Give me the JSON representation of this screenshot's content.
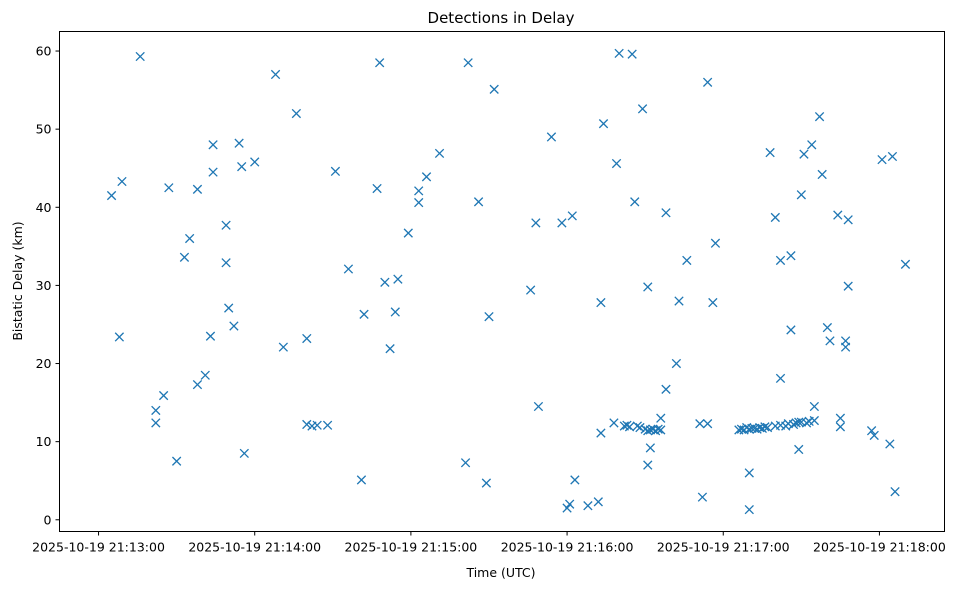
{
  "chart_data": {
    "type": "scatter",
    "title": "Detections in Delay",
    "xlabel": "Time (UTC)",
    "ylabel": "Bistatic Delay (km)",
    "x_unit": "seconds since 2025-10-19 21:13:00",
    "xlim": [
      -15,
      325
    ],
    "ylim": [
      -1.5,
      62.5
    ],
    "x_ticks": [
      0,
      60,
      120,
      180,
      240,
      300
    ],
    "x_tick_labels": [
      "2025-10-19 21:13:00",
      "2025-10-19 21:14:00",
      "2025-10-19 21:15:00",
      "2025-10-19 21:16:00",
      "2025-10-19 21:17:00",
      "2025-10-19 21:18:00"
    ],
    "y_ticks": [
      0,
      10,
      20,
      30,
      40,
      50,
      60
    ],
    "y_tick_labels": [
      "0",
      "10",
      "20",
      "30",
      "40",
      "50",
      "60"
    ],
    "marker": "x",
    "color": "#1f77b4",
    "series": [
      {
        "name": "Detections",
        "points": [
          [
            5,
            41.5
          ],
          [
            8,
            23.4
          ],
          [
            9,
            43.3
          ],
          [
            16,
            59.3
          ],
          [
            22,
            14
          ],
          [
            22,
            12.4
          ],
          [
            25,
            15.9
          ],
          [
            27,
            42.5
          ],
          [
            30,
            7.5
          ],
          [
            33,
            33.6
          ],
          [
            35,
            36
          ],
          [
            38,
            17.3
          ],
          [
            38,
            42.3
          ],
          [
            41,
            18.5
          ],
          [
            43,
            23.5
          ],
          [
            44,
            48
          ],
          [
            44,
            44.5
          ],
          [
            49,
            37.7
          ],
          [
            49,
            32.9
          ],
          [
            50,
            27.1
          ],
          [
            52,
            24.8
          ],
          [
            54,
            48.2
          ],
          [
            55,
            45.2
          ],
          [
            56,
            8.5
          ],
          [
            60,
            45.8
          ],
          [
            68,
            57
          ],
          [
            71,
            22.1
          ],
          [
            76,
            52
          ],
          [
            80,
            23.2
          ],
          [
            80,
            12.2
          ],
          [
            82,
            12
          ],
          [
            84,
            12.1
          ],
          [
            88,
            12.1
          ],
          [
            91,
            44.6
          ],
          [
            96,
            32.1
          ],
          [
            101,
            5.1
          ],
          [
            102,
            26.3
          ],
          [
            107,
            42.4
          ],
          [
            108,
            58.5
          ],
          [
            110,
            30.4
          ],
          [
            112,
            21.9
          ],
          [
            114,
            26.6
          ],
          [
            115,
            30.8
          ],
          [
            119,
            36.7
          ],
          [
            123,
            42.1
          ],
          [
            123,
            40.6
          ],
          [
            126,
            43.9
          ],
          [
            131,
            46.9
          ],
          [
            141,
            7.3
          ],
          [
            142,
            58.5
          ],
          [
            146,
            40.7
          ],
          [
            149,
            4.7
          ],
          [
            150,
            26
          ],
          [
            152,
            55.1
          ],
          [
            166,
            29.4
          ],
          [
            168,
            38
          ],
          [
            169,
            14.5
          ],
          [
            174,
            49
          ],
          [
            178,
            38
          ],
          [
            180,
            1.5
          ],
          [
            181,
            2
          ],
          [
            182,
            38.9
          ],
          [
            183,
            5.1
          ],
          [
            188,
            1.8
          ],
          [
            192,
            2.3
          ],
          [
            193,
            11.1
          ],
          [
            193,
            27.8
          ],
          [
            194,
            50.7
          ],
          [
            198,
            12.4
          ],
          [
            199,
            45.6
          ],
          [
            200,
            59.7
          ],
          [
            202,
            12
          ],
          [
            203,
            12.1
          ],
          [
            204,
            11.9
          ],
          [
            205,
            59.6
          ],
          [
            206,
            40.7
          ],
          [
            207,
            12
          ],
          [
            208,
            11.8
          ],
          [
            209,
            52.6
          ],
          [
            210,
            11.6
          ],
          [
            211,
            11.4
          ],
          [
            211,
            7
          ],
          [
            211,
            29.8
          ],
          [
            212,
            9.2
          ],
          [
            212,
            11.5
          ],
          [
            213,
            11.6
          ],
          [
            214,
            11.4
          ],
          [
            215,
            11.6
          ],
          [
            216,
            13
          ],
          [
            216,
            11.5
          ],
          [
            218,
            39.3
          ],
          [
            218,
            16.7
          ],
          [
            222,
            20
          ],
          [
            223,
            28
          ],
          [
            226,
            33.2
          ],
          [
            231,
            12.3
          ],
          [
            232,
            2.9
          ],
          [
            234,
            56
          ],
          [
            234,
            12.3
          ],
          [
            236,
            27.8
          ],
          [
            237,
            35.4
          ],
          [
            246,
            11.5
          ],
          [
            247,
            11.6
          ],
          [
            248,
            11.5
          ],
          [
            249,
            11.8
          ],
          [
            250,
            11.6
          ],
          [
            250,
            1.3
          ],
          [
            250,
            6
          ],
          [
            251,
            11.7
          ],
          [
            252,
            11.7
          ],
          [
            253,
            11.6
          ],
          [
            254,
            11.8
          ],
          [
            255,
            11.7
          ],
          [
            256,
            11.9
          ],
          [
            257,
            11.8
          ],
          [
            258,
            47
          ],
          [
            260,
            38.7
          ],
          [
            260,
            12
          ],
          [
            262,
            12.1
          ],
          [
            262,
            33.2
          ],
          [
            262,
            18.1
          ],
          [
            264,
            12
          ],
          [
            265,
            12.3
          ],
          [
            266,
            24.3
          ],
          [
            266,
            33.8
          ],
          [
            267,
            12.2
          ],
          [
            268,
            12.4
          ],
          [
            269,
            12.5
          ],
          [
            269,
            9
          ],
          [
            270,
            12.5
          ],
          [
            270,
            41.6
          ],
          [
            271,
            46.8
          ],
          [
            272,
            12.4
          ],
          [
            273,
            12.6
          ],
          [
            274,
            48
          ],
          [
            275,
            12.7
          ],
          [
            275,
            14.5
          ],
          [
            277,
            51.6
          ],
          [
            278,
            44.2
          ],
          [
            280,
            24.6
          ],
          [
            281,
            22.9
          ],
          [
            284,
            39
          ],
          [
            285,
            11.9
          ],
          [
            285,
            13
          ],
          [
            287,
            22.1
          ],
          [
            287,
            22.9
          ],
          [
            288,
            38.4
          ],
          [
            288,
            29.9
          ],
          [
            297,
            11.4
          ],
          [
            298,
            10.8
          ],
          [
            301,
            46.1
          ],
          [
            304,
            9.7
          ],
          [
            305,
            46.5
          ],
          [
            306,
            3.6
          ],
          [
            310,
            32.7
          ]
        ]
      }
    ]
  }
}
